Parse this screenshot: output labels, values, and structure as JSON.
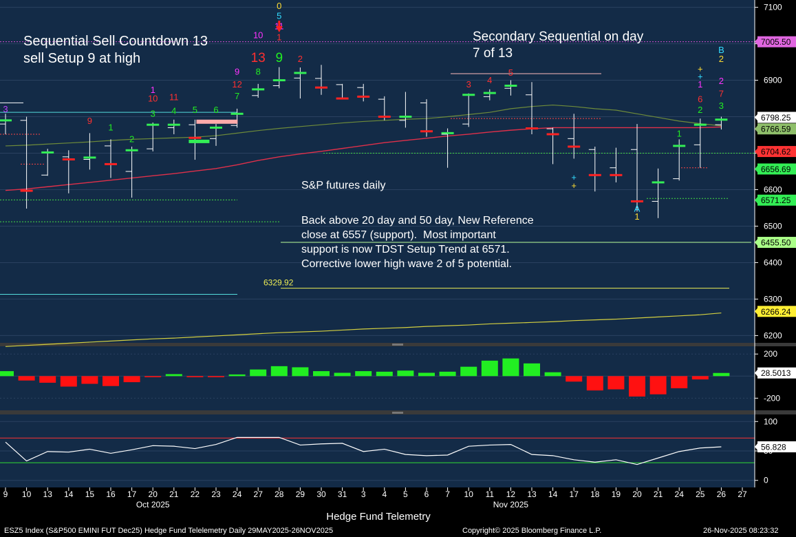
{
  "chart_data": [
    {
      "type": "candlestick",
      "title": "S&P futures daily",
      "ylim": [
        6180,
        7120
      ],
      "y_ticks": [
        6200,
        6300,
        6400,
        6500,
        6600,
        6700,
        6800,
        6900,
        7000,
        7100
      ],
      "x_ticks": [
        "9",
        "10",
        "13",
        "14",
        "15",
        "16",
        "17",
        "20",
        "21",
        "22",
        "23",
        "24",
        "27",
        "28",
        "29",
        "30",
        "31",
        "3",
        "4",
        "5",
        "6",
        "7",
        "10",
        "11",
        "12",
        "13",
        "14",
        "17",
        "18",
        "19",
        "20",
        "21",
        "24",
        "25",
        "26",
        "27"
      ],
      "month_labels": [
        {
          "label": "Oct 2025",
          "at": "20"
        },
        {
          "label": "Nov 2025",
          "at": "12"
        }
      ],
      "dates": [
        "2025-10-09",
        "2025-10-10",
        "2025-10-13",
        "2025-10-14",
        "2025-10-15",
        "2025-10-16",
        "2025-10-17",
        "2025-10-20",
        "2025-10-21",
        "2025-10-22",
        "2025-10-23",
        "2025-10-24",
        "2025-10-27",
        "2025-10-28",
        "2025-10-29",
        "2025-10-30",
        "2025-10-31",
        "2025-11-03",
        "2025-11-04",
        "2025-11-05",
        "2025-11-06",
        "2025-11-07",
        "2025-11-10",
        "2025-11-11",
        "2025-11-12",
        "2025-11-13",
        "2025-11-14",
        "2025-11-17",
        "2025-11-18",
        "2025-11-19",
        "2025-11-20",
        "2025-11-21",
        "2025-11-24",
        "2025-11-25",
        "2025-11-26"
      ],
      "ohlc": [
        {
          "o": 6780,
          "h": 6808,
          "l": 6752,
          "c": 6790
        },
        {
          "o": 6790,
          "h": 6800,
          "l": 6548,
          "c": 6597
        },
        {
          "o": 6640,
          "h": 6712,
          "l": 6638,
          "c": 6702
        },
        {
          "o": 6690,
          "h": 6708,
          "l": 6590,
          "c": 6683
        },
        {
          "o": 6683,
          "h": 6755,
          "l": 6655,
          "c": 6688
        },
        {
          "o": 6720,
          "h": 6738,
          "l": 6632,
          "c": 6670
        },
        {
          "o": 6650,
          "h": 6718,
          "l": 6578,
          "c": 6708
        },
        {
          "o": 6712,
          "h": 6784,
          "l": 6705,
          "c": 6778
        },
        {
          "o": 6770,
          "h": 6792,
          "l": 6752,
          "c": 6778
        },
        {
          "o": 6778,
          "h": 6792,
          "l": 6682,
          "c": 6742
        },
        {
          "o": 6740,
          "h": 6780,
          "l": 6720,
          "c": 6770
        },
        {
          "o": 6776,
          "h": 6822,
          "l": 6770,
          "c": 6808
        },
        {
          "o": 6858,
          "h": 6890,
          "l": 6852,
          "c": 6875
        },
        {
          "o": 6885,
          "h": 6936,
          "l": 6878,
          "c": 6900
        },
        {
          "o": 6906,
          "h": 6935,
          "l": 6850,
          "c": 6920
        },
        {
          "o": 6905,
          "h": 6942,
          "l": 6860,
          "c": 6880
        },
        {
          "o": 6888,
          "h": 6890,
          "l": 6848,
          "c": 6850
        },
        {
          "o": 6880,
          "h": 6890,
          "l": 6842,
          "c": 6855
        },
        {
          "o": 6848,
          "h": 6856,
          "l": 6790,
          "c": 6800
        },
        {
          "o": 6790,
          "h": 6868,
          "l": 6770,
          "c": 6800
        },
        {
          "o": 6838,
          "h": 6848,
          "l": 6745,
          "c": 6760
        },
        {
          "o": 6752,
          "h": 6768,
          "l": 6660,
          "c": 6755
        },
        {
          "o": 6780,
          "h": 6864,
          "l": 6772,
          "c": 6860
        },
        {
          "o": 6855,
          "h": 6875,
          "l": 6845,
          "c": 6865
        },
        {
          "o": 6878,
          "h": 6900,
          "l": 6858,
          "c": 6885
        },
        {
          "o": 6860,
          "h": 6895,
          "l": 6752,
          "c": 6768
        },
        {
          "o": 6767,
          "h": 6770,
          "l": 6670,
          "c": 6752
        },
        {
          "o": 6740,
          "h": 6808,
          "l": 6685,
          "c": 6718
        },
        {
          "o": 6710,
          "h": 6718,
          "l": 6595,
          "c": 6640
        },
        {
          "o": 6660,
          "h": 6715,
          "l": 6620,
          "c": 6640
        },
        {
          "o": 6710,
          "h": 6780,
          "l": 6540,
          "c": 6568
        },
        {
          "o": 6568,
          "h": 6658,
          "l": 6522,
          "c": 6620
        },
        {
          "o": 6630,
          "h": 6738,
          "l": 6625,
          "c": 6720
        },
        {
          "o": 6723,
          "h": 6795,
          "l": 6660,
          "c": 6778
        },
        {
          "o": 6778,
          "h": 6800,
          "l": 6765,
          "c": 6792
        }
      ],
      "ma_20": [
        6598,
        6602,
        6608,
        6614,
        6620,
        6626,
        6632,
        6638,
        6644,
        6651,
        6658,
        6668,
        6680,
        6690,
        6698,
        6705,
        6713,
        6721,
        6729,
        6735,
        6741,
        6747,
        6752,
        6758,
        6763,
        6767,
        6770,
        6770,
        6770,
        6770,
        6770,
        6770,
        6770,
        6770,
        6772
      ],
      "ma_50": [
        6720,
        6722,
        6725,
        6728,
        6731,
        6735,
        6738,
        6740,
        6742,
        6744,
        6748,
        6755,
        6762,
        6768,
        6773,
        6778,
        6783,
        6787,
        6790,
        6793,
        6795,
        6800,
        6806,
        6812,
        6822,
        6828,
        6832,
        6828,
        6822,
        6818,
        6808,
        6798,
        6788,
        6781,
        6775
      ],
      "ma_200": [
        6170,
        6173,
        6176,
        6179,
        6182,
        6185,
        6188,
        6191,
        6193,
        6196,
        6199,
        6202,
        6205,
        6208,
        6210,
        6212,
        6215,
        6218,
        6220,
        6222,
        6225,
        6227,
        6229,
        6232,
        6234,
        6236,
        6238,
        6241,
        6243,
        6245,
        6248,
        6251,
        6254,
        6257,
        6262
      ],
      "price_labels": [
        {
          "text": "7005.50",
          "y": 7005.5,
          "bg": "#e066e0"
        },
        {
          "text": "6798.25",
          "y": 6798.25,
          "bg": "#ffffff"
        },
        {
          "text": "6766.59",
          "y": 6766.59,
          "bg": "#8fbf6a"
        },
        {
          "text": "6704.62",
          "y": 6704.62,
          "bg": "#ff3333"
        },
        {
          "text": "6656.69",
          "y": 6656.69,
          "bg": "#33ee55"
        },
        {
          "text": "6571.25",
          "y": 6571.25,
          "bg": "#33ee55"
        },
        {
          "text": "6455.50",
          "y": 6455.5,
          "bg": "#aaff88"
        },
        {
          "text": "6266.24",
          "y": 6266.24,
          "bg": "#ffee33"
        }
      ],
      "level_6329": "6329.92",
      "seq_labels": [
        {
          "t": "3",
          "i": 0,
          "y": 6812,
          "c": "#c040ff"
        },
        {
          "t": "9",
          "i": 4,
          "y": 6780,
          "c": "#ff3030"
        },
        {
          "t": "1",
          "i": 5,
          "y": 6762,
          "c": "#22ee22"
        },
        {
          "t": "2",
          "i": 6,
          "y": 6730,
          "c": "#22ee22"
        },
        {
          "t": "3",
          "i": 7,
          "y": 6800,
          "c": "#22ee22"
        },
        {
          "t": "10",
          "i": 7,
          "y": 6842,
          "c": "#ff3030"
        },
        {
          "t": "1",
          "i": 7,
          "y": 6865,
          "c": "#ff33ff"
        },
        {
          "t": "4",
          "i": 8,
          "y": 6808,
          "c": "#22ee22"
        },
        {
          "t": "11",
          "i": 8,
          "y": 6845,
          "c": "#ff3030"
        },
        {
          "t": "5",
          "i": 9,
          "y": 6810,
          "c": "#22ee22"
        },
        {
          "t": "6",
          "i": 10,
          "y": 6810,
          "c": "#22ee22"
        },
        {
          "t": "7",
          "i": 11,
          "y": 6848,
          "c": "#22ee22"
        },
        {
          "t": "12",
          "i": 11,
          "y": 6880,
          "c": "#ff3030"
        },
        {
          "t": "9",
          "i": 11,
          "y": 6915,
          "c": "#ff33ff"
        },
        {
          "t": "8",
          "i": 12,
          "y": 6915,
          "c": "#22ee22"
        },
        {
          "t": "13",
          "i": 12,
          "y": 6950,
          "c": "#ff3030"
        },
        {
          "t": "10",
          "i": 12,
          "y": 7015,
          "c": "#ff33ff"
        },
        {
          "t": "9",
          "i": 13,
          "y": 6950,
          "c": "#22ee22"
        },
        {
          "t": "1",
          "i": 13,
          "y": 7010,
          "c": "#ff3030"
        },
        {
          "t": "11",
          "i": 13,
          "y": 7040,
          "c": "#ff33ff"
        },
        {
          "t": "5",
          "i": 13,
          "y": 7068,
          "c": "#33ddff"
        },
        {
          "t": "0",
          "i": 13,
          "y": 7095,
          "c": "#ffdd33"
        },
        {
          "t": "2",
          "i": 14,
          "y": 6950,
          "c": "#ff3030"
        },
        {
          "t": "3",
          "i": 22,
          "y": 6880,
          "c": "#ff3030"
        },
        {
          "t": "4",
          "i": 23,
          "y": 6892,
          "c": "#ff3030"
        },
        {
          "t": "5",
          "i": 24,
          "y": 6912,
          "c": "#ff3030"
        },
        {
          "t": "1",
          "i": 32,
          "y": 6745,
          "c": "#22ee22"
        },
        {
          "t": "2",
          "i": 33,
          "y": 6810,
          "c": "#22ee22"
        },
        {
          "t": "6",
          "i": 33,
          "y": 6840,
          "c": "#ff3030"
        },
        {
          "t": "1",
          "i": 33,
          "y": 6880,
          "c": "#ff33ff"
        },
        {
          "t": "+",
          "i": 33,
          "y": 6902,
          "c": "#33ddff"
        },
        {
          "t": "+",
          "i": 33,
          "y": 6923,
          "c": "#ffdd33"
        },
        {
          "t": "3",
          "i": 34,
          "y": 6822,
          "c": "#22ee22"
        },
        {
          "t": "7",
          "i": 34,
          "y": 6855,
          "c": "#ff3030"
        },
        {
          "t": "2",
          "i": 34,
          "y": 6890,
          "c": "#ff33ff"
        },
        {
          "t": "2",
          "i": 34,
          "y": 6950,
          "c": "#ffdd33"
        },
        {
          "t": "B",
          "i": 34,
          "y": 6975,
          "c": "#33ddff"
        },
        {
          "t": "A",
          "i": 30,
          "y": 6540,
          "c": "#33ddff"
        },
        {
          "t": "1",
          "i": 30,
          "y": 6518,
          "c": "#ffdd33"
        },
        {
          "t": "+",
          "i": 27,
          "y": 6625,
          "c": "#33ddff"
        },
        {
          "t": "+",
          "i": 27,
          "y": 6603,
          "c": "#ffdd33"
        }
      ],
      "annotations": {
        "left": "Sequential Sell Countdown 13\nsell Setup 9 at high",
        "right": "Secondary Sequential on day\n7 of 13",
        "title": "S&P futures daily",
        "body": "Back above 20 day and 50 day, New Reference\nclose at 6557 (support).  Most important\nsupport is now TDST Setup Trend at 6571.\nCorrective lower high wave 2 of 5 potential."
      }
    },
    {
      "type": "bar",
      "ylim": [
        -310,
        270
      ],
      "y_ticks": [
        200,
        -200
      ],
      "last_value_label": "28.5013",
      "values": [
        45,
        -40,
        -60,
        -95,
        -70,
        -90,
        -55,
        -10,
        18,
        -10,
        -10,
        15,
        60,
        90,
        80,
        45,
        30,
        45,
        40,
        50,
        30,
        40,
        85,
        140,
        160,
        115,
        35,
        -50,
        -130,
        -120,
        -185,
        -165,
        -110,
        -30,
        28.5
      ]
    },
    {
      "type": "line",
      "ylim": [
        -12,
        112
      ],
      "y_ticks": [
        100,
        50,
        0
      ],
      "upper_level": 72,
      "lower_level": 30,
      "last_value_label": "56.828",
      "values": [
        65,
        33,
        49,
        48,
        53,
        46,
        52,
        59,
        58,
        54,
        61,
        73,
        73,
        73,
        60,
        62,
        63,
        49,
        53,
        44,
        42,
        43,
        58,
        60,
        61,
        44,
        42,
        35,
        31,
        35,
        27,
        38,
        49,
        55,
        57
      ]
    }
  ],
  "footer": {
    "title": "Hedge Fund Telemetry",
    "left": "ESZ5 Index (S&P500 EMINI FUT  Dec25) Hedge Fund Telelemetry Daily 29MAY2025-26NOV2025",
    "center": "Copyright© 2025 Bloomberg Finance L.P.",
    "right": "26-Nov-2025 08:23:32"
  },
  "colors": {
    "panel_bg": "#132b47",
    "axis_bg": "#000000",
    "up": "#33ee55",
    "down": "#ff2222",
    "ma20": "#e0304a",
    "ma50": "#6f8c3a",
    "ma200": "#d4d040"
  }
}
